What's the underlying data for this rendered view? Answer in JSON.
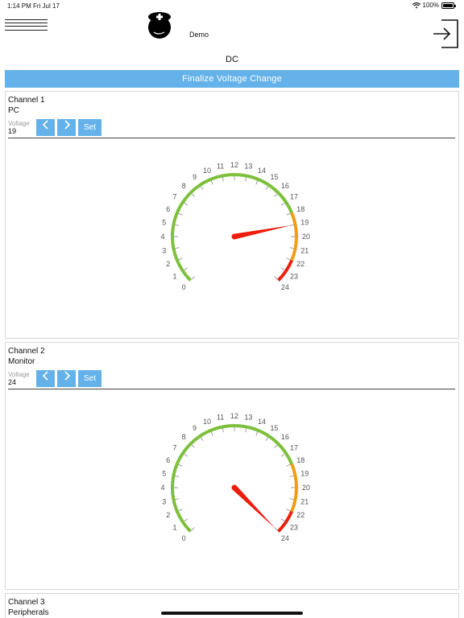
{
  "status_bar": {
    "time": "1:14 PM",
    "date": "Fri Jul 17",
    "battery": "100%"
  },
  "header": {
    "app_name": "Demo"
  },
  "page": {
    "mode": "DC",
    "finalize_label": "Finalize Voltage Change"
  },
  "gauge_scale": {
    "min": 0,
    "max": 24,
    "labels": [
      "0",
      "1",
      "2",
      "3",
      "4",
      "5",
      "6",
      "7",
      "8",
      "9",
      "10",
      "11",
      "12",
      "13",
      "14",
      "15",
      "16",
      "17",
      "18",
      "19",
      "20",
      "21",
      "22",
      "23",
      "24"
    ]
  },
  "colors": {
    "accent": "#64b2e9",
    "green": "#7dc03b",
    "orange": "#f39c12",
    "red": "#e8230e",
    "needle": "#ee1c0c"
  },
  "channels": [
    {
      "name": "Channel 1",
      "device": "PC",
      "voltage_label": "Voltage",
      "voltage": "19",
      "set_label": "Set",
      "prev_glyph": "‹",
      "next_glyph": "›",
      "value": 19
    },
    {
      "name": "Channel 2",
      "device": "Monitor",
      "voltage_label": "Voltage",
      "voltage": "24",
      "set_label": "Set",
      "prev_glyph": "‹",
      "next_glyph": "›",
      "value": 24
    },
    {
      "name": "Channel 3",
      "device": "Peripherals"
    }
  ]
}
